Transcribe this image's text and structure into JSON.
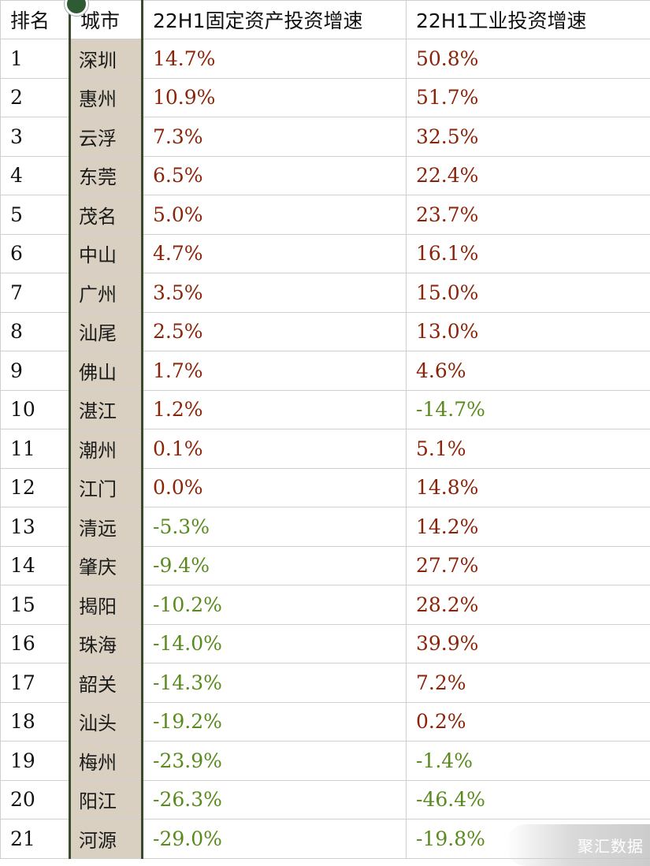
{
  "table": {
    "headers": {
      "rank": "排名",
      "city": "城市",
      "fixed_asset": "22H1固定资产投资增速",
      "industrial": "22H1工业投资增速"
    },
    "rows": [
      {
        "rank": "1",
        "city": "深圳",
        "fixed": "14.7%",
        "industrial": "50.8%"
      },
      {
        "rank": "2",
        "city": "惠州",
        "fixed": "10.9%",
        "industrial": "51.7%"
      },
      {
        "rank": "3",
        "city": "云浮",
        "fixed": "7.3%",
        "industrial": "32.5%"
      },
      {
        "rank": "4",
        "city": "东莞",
        "fixed": "6.5%",
        "industrial": "22.4%"
      },
      {
        "rank": "5",
        "city": "茂名",
        "fixed": "5.0%",
        "industrial": "23.7%"
      },
      {
        "rank": "6",
        "city": "中山",
        "fixed": "4.7%",
        "industrial": "16.1%"
      },
      {
        "rank": "7",
        "city": "广州",
        "fixed": "3.5%",
        "industrial": "15.0%"
      },
      {
        "rank": "8",
        "city": "汕尾",
        "fixed": "2.5%",
        "industrial": "13.0%"
      },
      {
        "rank": "9",
        "city": "佛山",
        "fixed": "1.7%",
        "industrial": "4.6%"
      },
      {
        "rank": "10",
        "city": "湛江",
        "fixed": "1.2%",
        "industrial": "-14.7%"
      },
      {
        "rank": "11",
        "city": "潮州",
        "fixed": "0.1%",
        "industrial": "5.1%"
      },
      {
        "rank": "12",
        "city": "江门",
        "fixed": "0.0%",
        "industrial": "14.8%"
      },
      {
        "rank": "13",
        "city": "清远",
        "fixed": "-5.3%",
        "industrial": "14.2%"
      },
      {
        "rank": "14",
        "city": "肇庆",
        "fixed": "-9.4%",
        "industrial": "27.7%"
      },
      {
        "rank": "15",
        "city": "揭阳",
        "fixed": "-10.2%",
        "industrial": "28.2%"
      },
      {
        "rank": "16",
        "city": "珠海",
        "fixed": "-14.0%",
        "industrial": "39.9%"
      },
      {
        "rank": "17",
        "city": "韶关",
        "fixed": "-14.3%",
        "industrial": "7.2%"
      },
      {
        "rank": "18",
        "city": "汕头",
        "fixed": "-19.2%",
        "industrial": "0.2%"
      },
      {
        "rank": "19",
        "city": "梅州",
        "fixed": "-23.9%",
        "industrial": "-1.4%"
      },
      {
        "rank": "20",
        "city": "阳江",
        "fixed": "-26.3%",
        "industrial": "-46.4%"
      },
      {
        "rank": "21",
        "city": "河源",
        "fixed": "-29.0%",
        "industrial": "-19.8%"
      }
    ]
  },
  "colors": {
    "positive": "#8a2408",
    "negative": "#5a8a1e",
    "city_column_bg": "#d9d0c1"
  },
  "watermark": "聚汇数据"
}
